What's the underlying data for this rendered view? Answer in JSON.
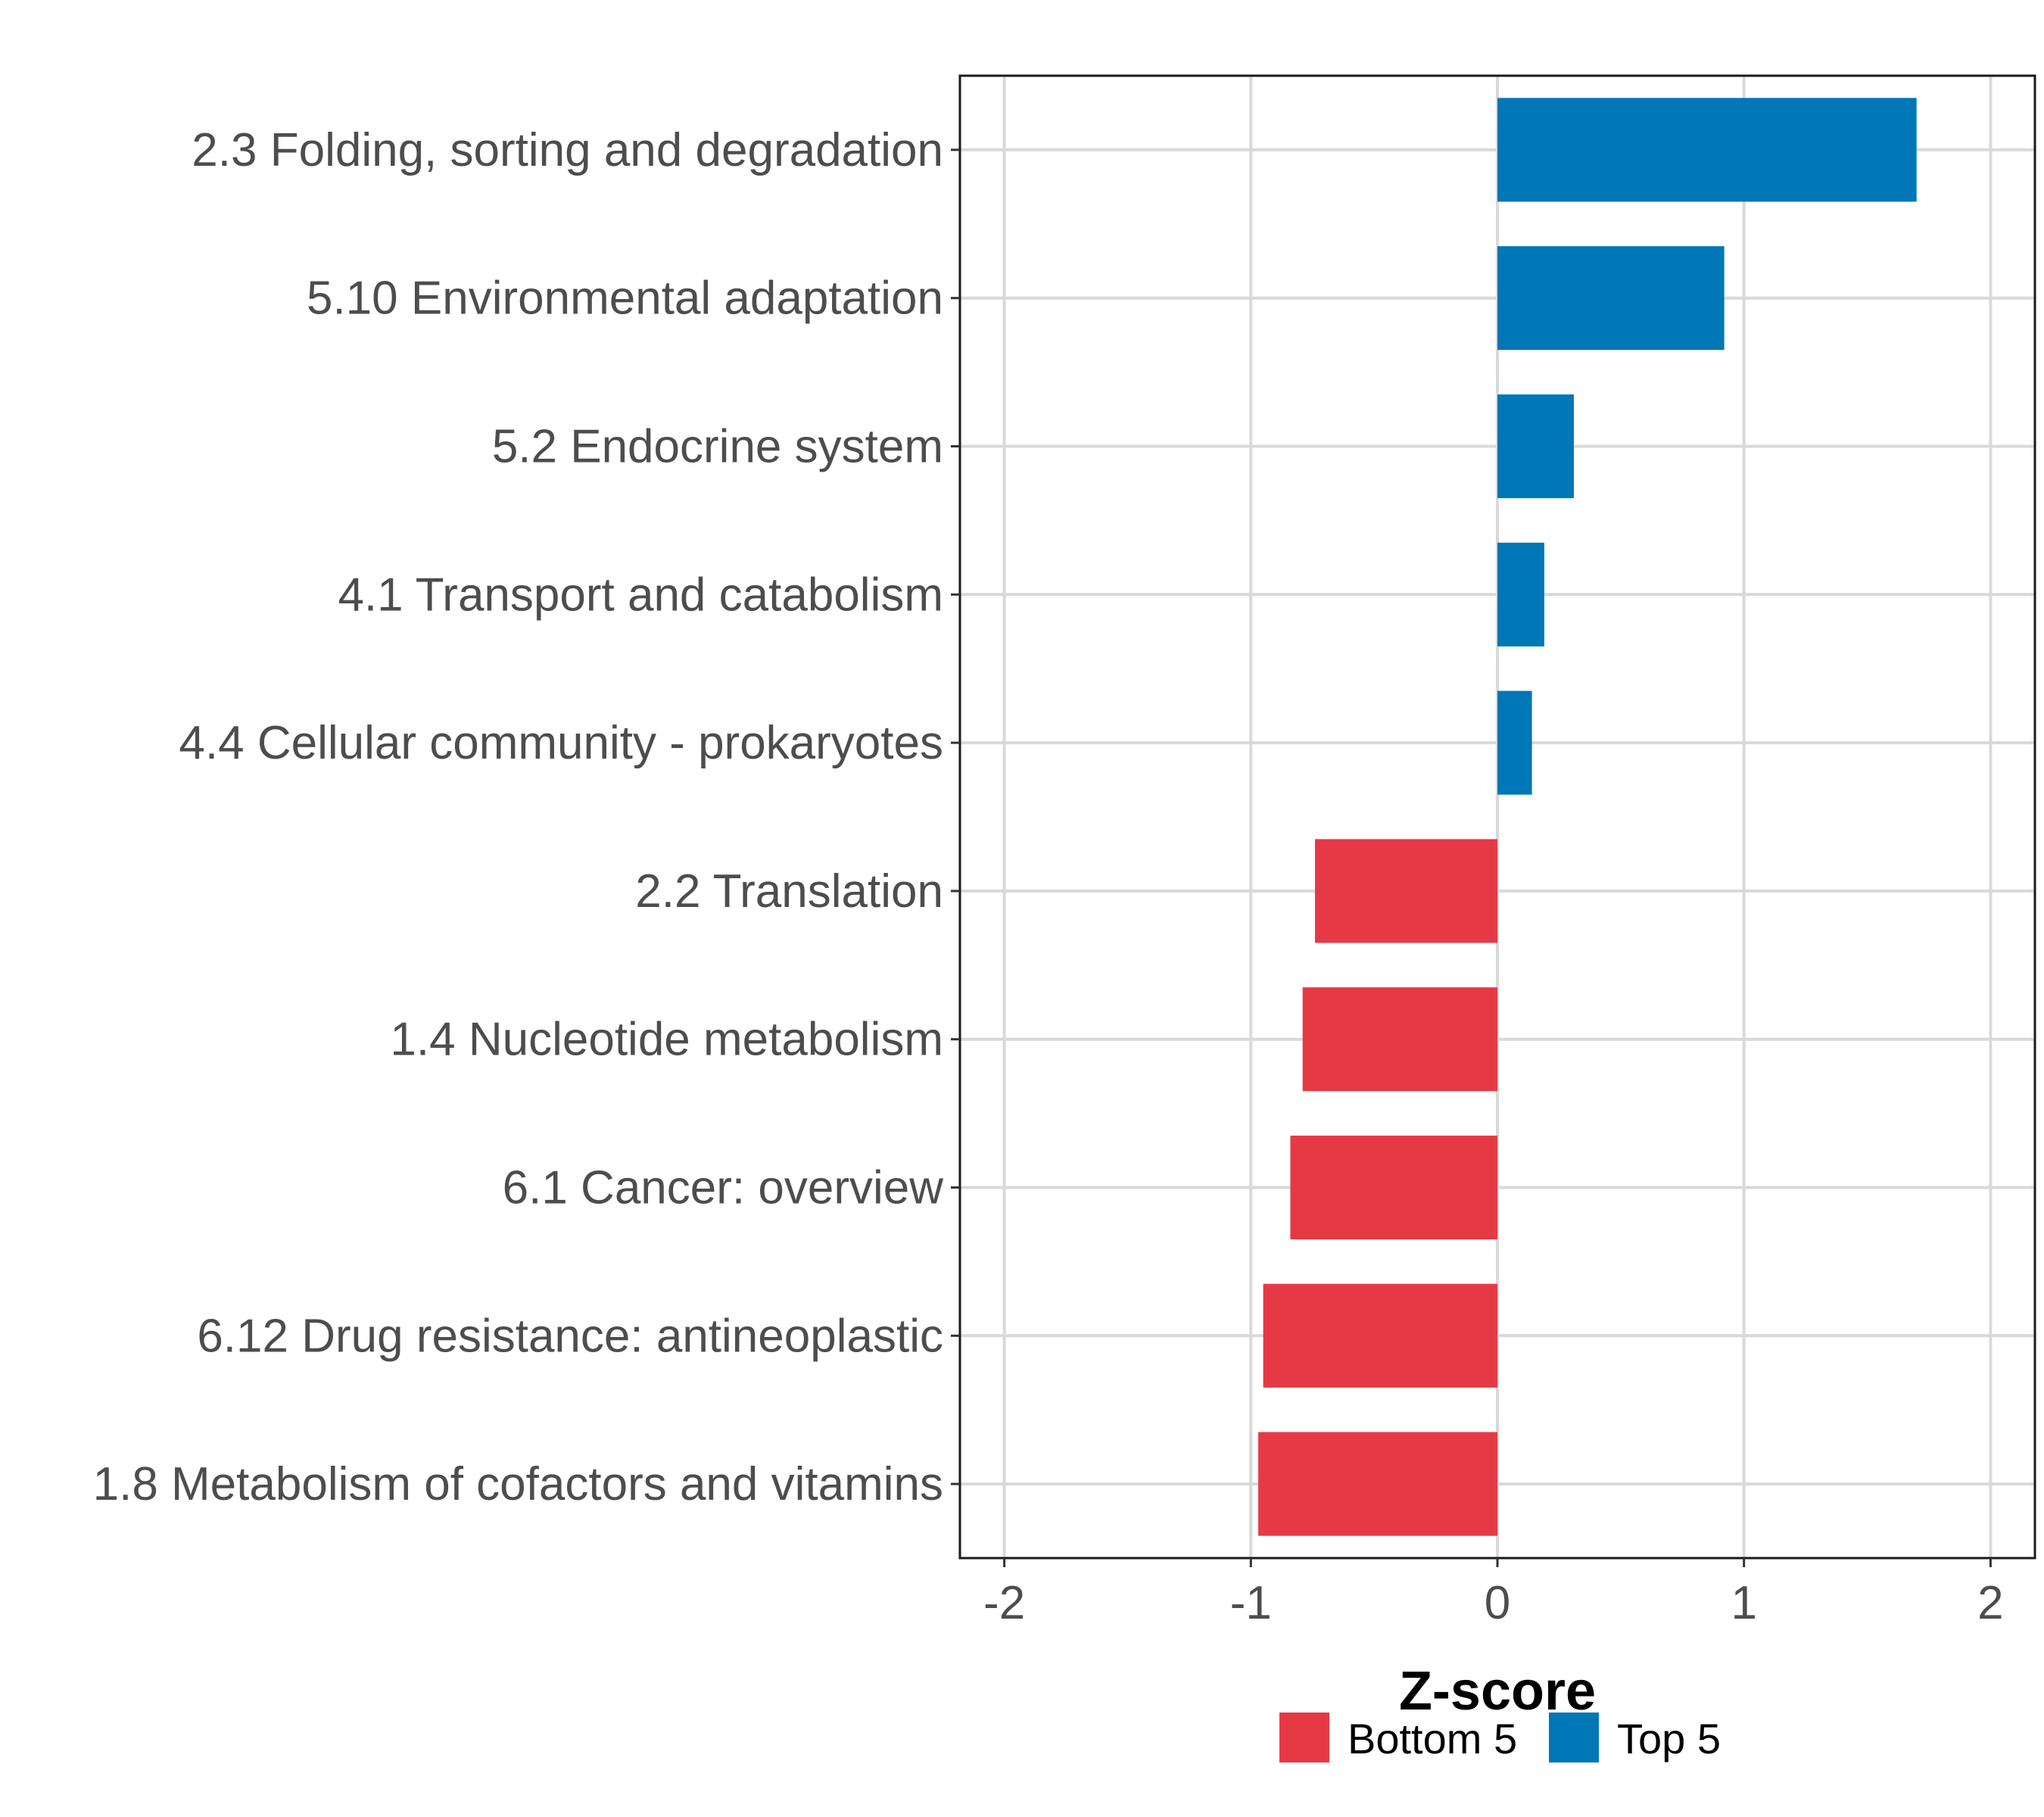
{
  "chart_data": {
    "type": "bar",
    "orientation": "horizontal",
    "title": "",
    "xlabel": "Z-score",
    "ylabel": "",
    "xlim": [
      -2.18,
      2.18
    ],
    "xticks": [
      -2,
      -1,
      0,
      1,
      2
    ],
    "xtick_labels": [
      "-2",
      "-1",
      "0",
      "1",
      "2"
    ],
    "grid": true,
    "legend_position": "bottom",
    "categories": [
      "2.3 Folding, sorting and degradation",
      "5.10 Environmental adaptation",
      "5.2 Endocrine system",
      "4.1 Transport and catabolism",
      "4.4 Cellular community - prokaryotes",
      "2.2 Translation",
      "1.4 Nucleotide metabolism",
      "6.1 Cancer: overview",
      "6.12 Drug resistance: antineoplastic",
      "1.8 Metabolism of cofactors and vitamins"
    ],
    "values": [
      1.7,
      0.92,
      0.31,
      0.19,
      0.14,
      -0.74,
      -0.79,
      -0.84,
      -0.95,
      -0.97
    ],
    "groups": [
      "Top 5",
      "Top 5",
      "Top 5",
      "Top 5",
      "Top 5",
      "Bottom 5",
      "Bottom 5",
      "Bottom 5",
      "Bottom 5",
      "Bottom 5"
    ],
    "legend": [
      {
        "name": "Bottom 5",
        "color": "#e63946"
      },
      {
        "name": "Top 5",
        "color": "#0077b6"
      }
    ]
  }
}
